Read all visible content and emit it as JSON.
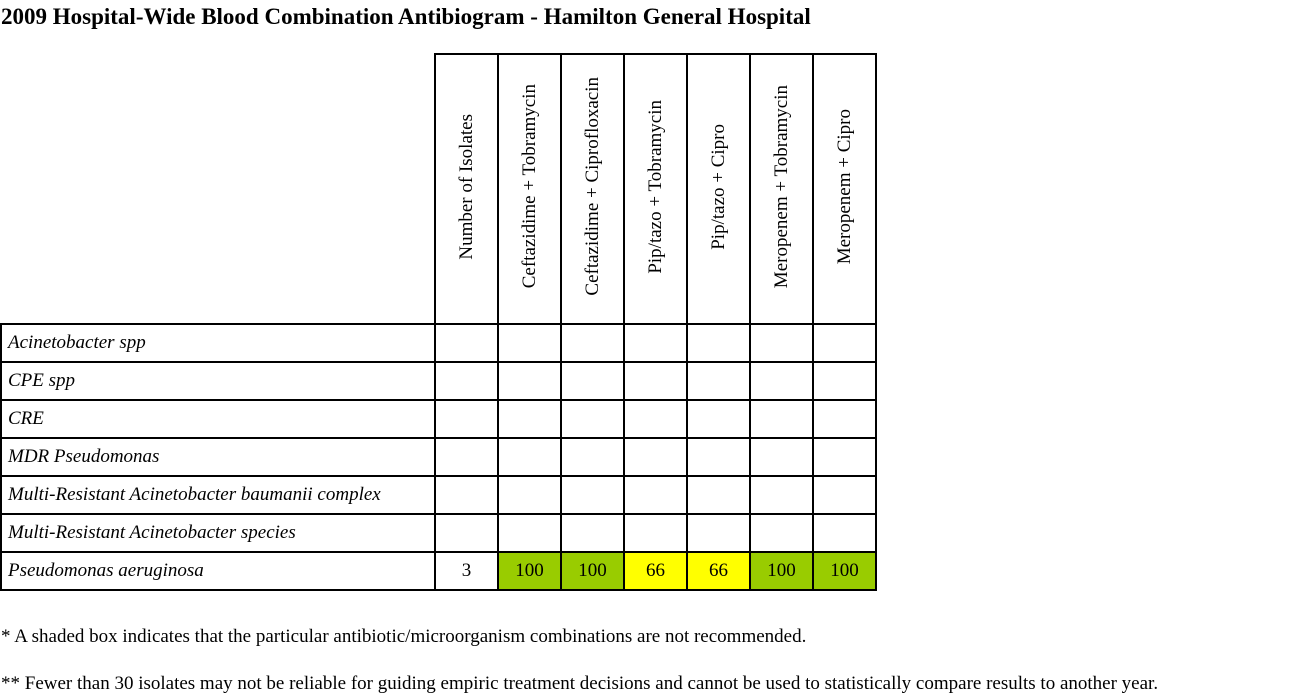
{
  "title": "2009 Hospital-Wide Blood Combination Antibiogram - Hamilton General Hospital",
  "colors": {
    "not_recommended_green": "#99cc00",
    "shaded_yellow": "#ffff00",
    "border": "#000000"
  },
  "table": {
    "columns": [
      "Number of Isolates",
      "Ceftazidime + Tobramycin",
      "Ceftazidime + Ciprofloxacin",
      "Pip/tazo + Tobramycin",
      "Pip/tazo + Cipro",
      "Meropenem + Tobramycin",
      "Meropenem + Cipro"
    ],
    "rows": [
      {
        "organism": "Acinetobacter spp",
        "values": [
          "",
          "",
          "",
          "",
          "",
          "",
          ""
        ],
        "shading": [
          "",
          "",
          "",
          "",
          "",
          "",
          ""
        ]
      },
      {
        "organism": "CPE spp",
        "values": [
          "",
          "",
          "",
          "",
          "",
          "",
          ""
        ],
        "shading": [
          "",
          "",
          "",
          "",
          "",
          "",
          ""
        ]
      },
      {
        "organism": "CRE",
        "values": [
          "",
          "",
          "",
          "",
          "",
          "",
          ""
        ],
        "shading": [
          "",
          "",
          "",
          "",
          "",
          "",
          ""
        ]
      },
      {
        "organism": "MDR Pseudomonas",
        "values": [
          "",
          "",
          "",
          "",
          "",
          "",
          ""
        ],
        "shading": [
          "",
          "",
          "",
          "",
          "",
          "",
          ""
        ]
      },
      {
        "organism": "Multi-Resistant Acinetobacter baumanii complex",
        "values": [
          "",
          "",
          "",
          "",
          "",
          "",
          ""
        ],
        "shading": [
          "",
          "",
          "",
          "",
          "",
          "",
          ""
        ]
      },
      {
        "organism": "Multi-Resistant Acinetobacter species",
        "values": [
          "",
          "",
          "",
          "",
          "",
          "",
          ""
        ],
        "shading": [
          "",
          "",
          "",
          "",
          "",
          "",
          ""
        ]
      },
      {
        "organism": "Pseudomonas aeruginosa",
        "values": [
          "3",
          "100",
          "100",
          "66",
          "66",
          "100",
          "100"
        ],
        "shading": [
          "",
          "green",
          "green",
          "yellow",
          "yellow",
          "green",
          "green"
        ]
      }
    ]
  },
  "notes": [
    "* A shaded box indicates that the particular antibiotic/microorganism combinations are not recommended.",
    "** Fewer than 30 isolates may not be reliable for guiding empiric treatment decisions and cannot be used to statistically compare results to another year."
  ]
}
